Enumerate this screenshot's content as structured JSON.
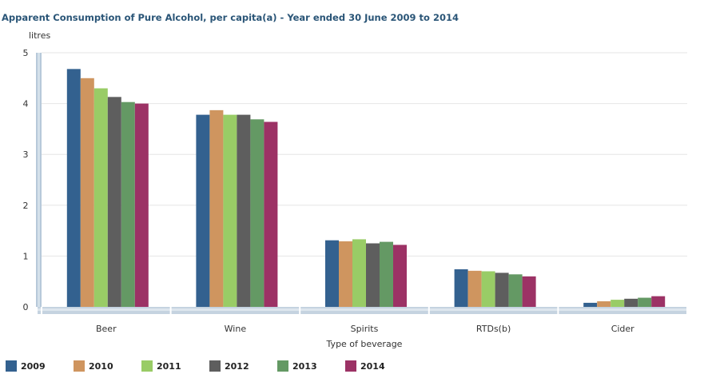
{
  "chart_data": {
    "type": "bar",
    "title": "Apparent Consumption of Pure Alcohol, per capita(a) - Year ended 30 June 2009 to 2014",
    "ylabel": "litres",
    "xlabel": "Type of beverage",
    "ylim": [
      0,
      5
    ],
    "yticks": [
      0,
      1,
      2,
      3,
      4,
      5
    ],
    "grid": true,
    "legend_position": "bottom-left",
    "categories": [
      "Beer",
      "Wine",
      "Spirits",
      "RTDs(b)",
      "Cider"
    ],
    "series": [
      {
        "name": "2009",
        "color": "#33618f",
        "values": [
          4.68,
          3.78,
          1.31,
          0.74,
          0.08
        ]
      },
      {
        "name": "2010",
        "color": "#cf955f",
        "values": [
          4.5,
          3.87,
          1.29,
          0.71,
          0.11
        ]
      },
      {
        "name": "2011",
        "color": "#99cc66",
        "values": [
          4.3,
          3.78,
          1.33,
          0.7,
          0.14
        ]
      },
      {
        "name": "2012",
        "color": "#5e5e5e",
        "values": [
          4.13,
          3.78,
          1.25,
          0.67,
          0.16
        ]
      },
      {
        "name": "2013",
        "color": "#649964",
        "values": [
          4.03,
          3.69,
          1.28,
          0.64,
          0.18
        ]
      },
      {
        "name": "2014",
        "color": "#9c3265",
        "values": [
          4.0,
          3.64,
          1.22,
          0.6,
          0.21
        ]
      }
    ]
  }
}
